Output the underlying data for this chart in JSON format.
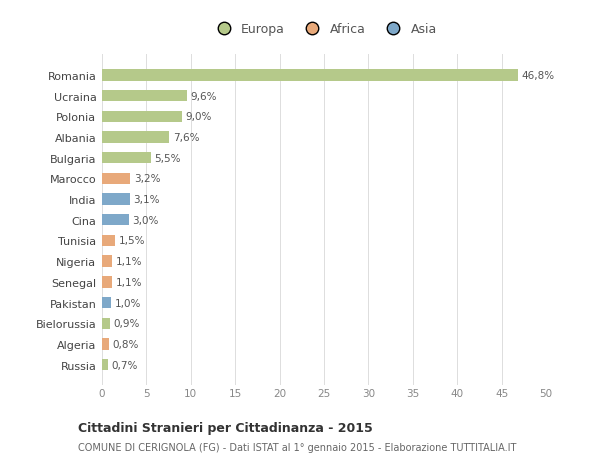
{
  "countries": [
    "Romania",
    "Ucraina",
    "Polonia",
    "Albania",
    "Bulgaria",
    "Marocco",
    "India",
    "Cina",
    "Tunisia",
    "Nigeria",
    "Senegal",
    "Pakistan",
    "Bielorussia",
    "Algeria",
    "Russia"
  ],
  "values": [
    46.8,
    9.6,
    9.0,
    7.6,
    5.5,
    3.2,
    3.1,
    3.0,
    1.5,
    1.1,
    1.1,
    1.0,
    0.9,
    0.8,
    0.7
  ],
  "labels": [
    "46,8%",
    "9,6%",
    "9,0%",
    "7,6%",
    "5,5%",
    "3,2%",
    "3,1%",
    "3,0%",
    "1,5%",
    "1,1%",
    "1,1%",
    "1,0%",
    "0,9%",
    "0,8%",
    "0,7%"
  ],
  "continents": [
    "Europa",
    "Europa",
    "Europa",
    "Europa",
    "Europa",
    "Africa",
    "Asia",
    "Asia",
    "Africa",
    "Africa",
    "Africa",
    "Asia",
    "Europa",
    "Africa",
    "Europa"
  ],
  "colors": {
    "Europa": "#b5c98a",
    "Africa": "#e8a97a",
    "Asia": "#7ea8c9"
  },
  "xlim": [
    0,
    50
  ],
  "xticks": [
    0,
    5,
    10,
    15,
    20,
    25,
    30,
    35,
    40,
    45,
    50
  ],
  "title": "Cittadini Stranieri per Cittadinanza - 2015",
  "subtitle": "COMUNE DI CERIGNOLA (FG) - Dati ISTAT al 1° gennaio 2015 - Elaborazione TUTTITALIA.IT",
  "background_color": "#ffffff",
  "chart_bg_color": "#ffffff",
  "grid_color": "#dddddd",
  "bar_height": 0.55
}
